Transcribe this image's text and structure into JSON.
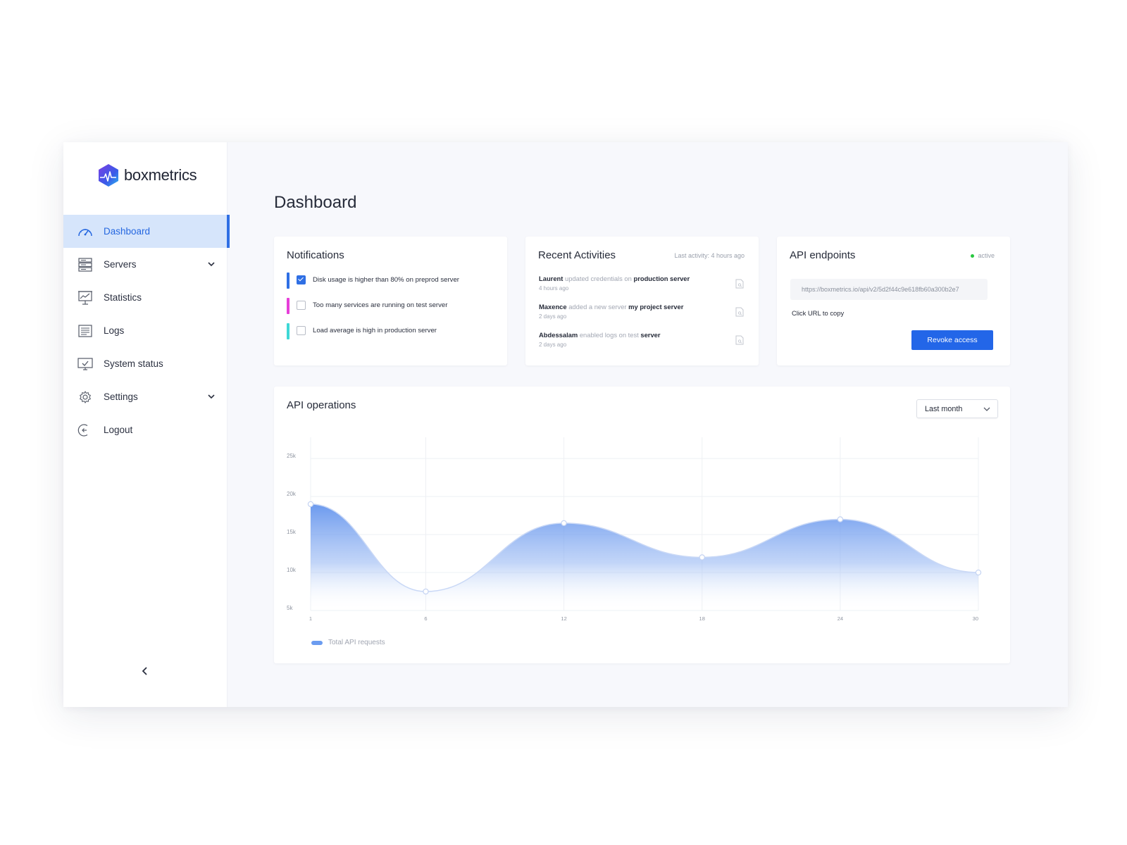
{
  "brand": {
    "name": "boxmetrics"
  },
  "sidebar": {
    "items": [
      {
        "label": "Dashboard",
        "icon": "speedometer-icon",
        "active": true
      },
      {
        "label": "Servers",
        "icon": "server-icon",
        "expandable": true
      },
      {
        "label": "Statistics",
        "icon": "presentation-chart-icon"
      },
      {
        "label": "Logs",
        "icon": "log-list-icon"
      },
      {
        "label": "System status",
        "icon": "monitor-check-icon"
      },
      {
        "label": "Settings",
        "icon": "gear-icon",
        "expandable": true
      },
      {
        "label": "Logout",
        "icon": "logout-icon"
      }
    ],
    "collapse_icon": "chevron-left-icon"
  },
  "page": {
    "title": "Dashboard"
  },
  "notifications": {
    "title": "Notifications",
    "items": [
      {
        "text": "Disk usage is higher than 80% on preprod server",
        "checked": true,
        "color": "#2f6fe4"
      },
      {
        "text": "Too many services are running on test server",
        "checked": false,
        "color": "#e63fd9"
      },
      {
        "text": "Load average is high in production server",
        "checked": false,
        "color": "#3fd8d6"
      }
    ]
  },
  "activities": {
    "title": "Recent Activities",
    "last_activity": "Last activity: 4 hours ago",
    "items": [
      {
        "actor": "Laurent",
        "action": " updated credentials on ",
        "target": "production server",
        "time": "4 hours ago"
      },
      {
        "actor": "Maxence",
        "action": " added a new server ",
        "target": "my project server",
        "time": "2 days ago"
      },
      {
        "actor": "Abdessalam",
        "action": " enabled logs on test ",
        "target": "server",
        "time": "2 days ago"
      }
    ]
  },
  "api": {
    "title": "API endpoints",
    "status": "active",
    "status_color": "#28c840",
    "url": "https://boxmetrics.io/api/v2/5d2f44c9e618fb60a300b2e7",
    "copy_hint": "Click URL to copy",
    "revoke_label": "Revoke access",
    "accent": "#2366e8"
  },
  "operations": {
    "title": "API operations",
    "range_selected": "Last month",
    "legend": "Total API requests"
  },
  "chart_data": {
    "type": "area",
    "x": [
      1,
      6,
      12,
      18,
      24,
      30
    ],
    "series": [
      {
        "name": "Total API requests",
        "values": [
          19000,
          7500,
          16500,
          12000,
          17000,
          10000
        ]
      }
    ],
    "x_ticks": [
      "1",
      "6",
      "12",
      "18",
      "24",
      "30"
    ],
    "y_ticks": [
      "5k",
      "10k",
      "15k",
      "20k",
      "25k"
    ],
    "ylim": [
      5000,
      26500
    ],
    "xlim": [
      1,
      30
    ],
    "grid": true,
    "legend_position": "bottom-left",
    "color": "#4f86ec"
  }
}
